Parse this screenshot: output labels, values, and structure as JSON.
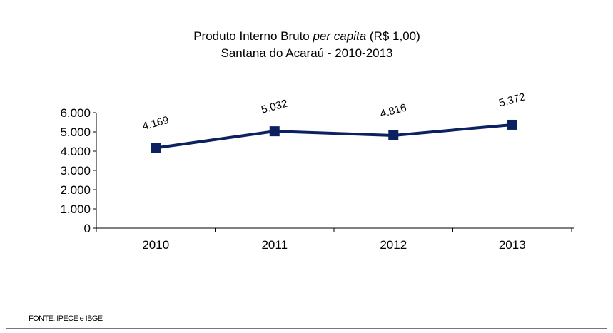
{
  "chart_data": {
    "type": "line",
    "title_parts": [
      "Produto Interno Bruto",
      "per capita",
      "(R$ 1,00)"
    ],
    "subtitle": "Santana do Acaraú  - 2010-2013",
    "categories": [
      "2010",
      "2011",
      "2012",
      "2013"
    ],
    "values": [
      4169,
      5032,
      4816,
      5372
    ],
    "value_labels": [
      "4.169",
      "5.032",
      "4.816",
      "5.372"
    ],
    "color": "#0c2260",
    "ylim": [
      0,
      6000
    ],
    "yticks": [
      0,
      {
        "value": 1000,
        "label": "1.000"
      },
      {
        "value": 2000,
        "label": "2.000"
      },
      {
        "value": 3000,
        "label": "3.000"
      },
      {
        "value": 4000,
        "label": "4.000"
      },
      {
        "value": 5000,
        "label": "5.000"
      },
      {
        "value": 6000,
        "label": "6.000"
      }
    ],
    "source": "FONTE: IPECE e IBGE"
  }
}
